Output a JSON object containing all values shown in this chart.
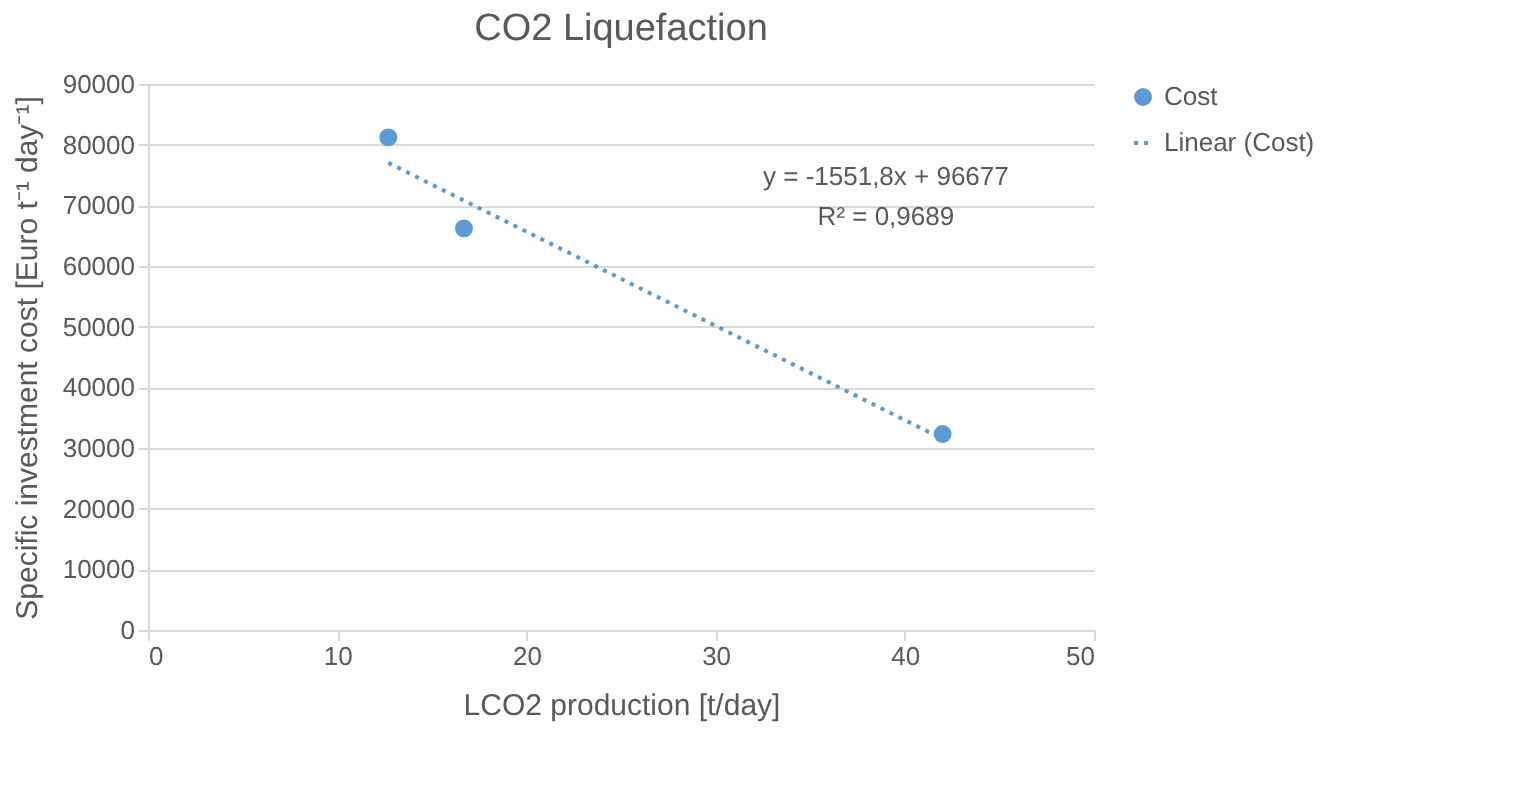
{
  "chart_data": {
    "type": "scatter",
    "title": "CO2 Liquefaction",
    "xlabel": "LCO2 production [t/day]",
    "ylabel": "Specific investment cost [Euro t⁻¹ day⁻¹]",
    "xlim": [
      0,
      50
    ],
    "xticks": [
      0,
      10,
      20,
      30,
      40,
      50
    ],
    "ylim": [
      0,
      90000
    ],
    "yticks": [
      0,
      10000,
      20000,
      30000,
      40000,
      50000,
      60000,
      70000,
      80000,
      90000
    ],
    "grid": "y",
    "legend": "right",
    "series": [
      {
        "name": "Cost",
        "marker": "circle",
        "color": "#5b9bd5",
        "x": [
          12.7,
          16.7,
          42
        ],
        "values": [
          81200,
          66200,
          32300
        ]
      },
      {
        "name": "Linear (Cost)",
        "type": "line",
        "line_style": "dotted",
        "color": "#5b9bd5",
        "x": [
          12.7,
          42
        ],
        "values": [
          77000,
          31500
        ]
      }
    ],
    "annotations": [
      "y = -1551,8x + 96677",
      "R² = 0,9689"
    ]
  }
}
